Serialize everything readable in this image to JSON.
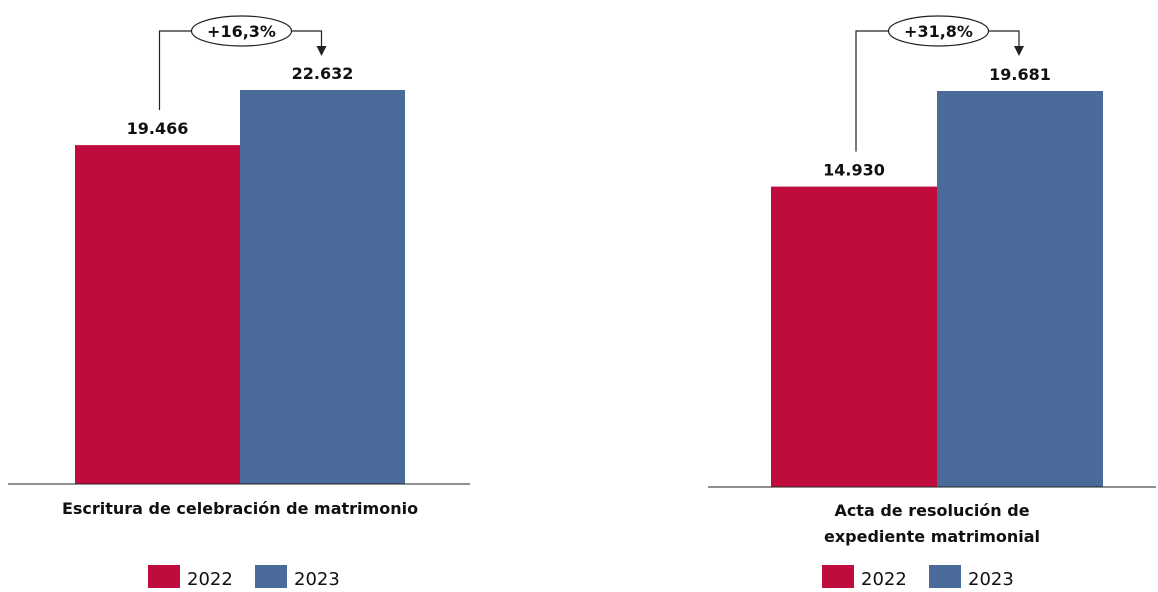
{
  "chart_data": [
    {
      "type": "bar",
      "category": "Escritura de celebración de matrimonio",
      "category_lines": [
        "Escritura de celebración de matrimonio"
      ],
      "series": [
        {
          "name": "2022",
          "value": 19466,
          "label": "19.466"
        },
        {
          "name": "2023",
          "value": 22632,
          "label": "22.632"
        }
      ],
      "change_label": "+16,3%",
      "ylim": [
        0,
        25000
      ]
    },
    {
      "type": "bar",
      "category": "Acta de resolución de expediente matrimonial",
      "category_lines": [
        "Acta de resolución de",
        "expediente matrimonial"
      ],
      "series": [
        {
          "name": "2022",
          "value": 14930,
          "label": "14.930"
        },
        {
          "name": "2023",
          "value": 19681,
          "label": "19.681"
        }
      ],
      "change_label": "+31,8%",
      "ylim": [
        0,
        22000
      ]
    }
  ],
  "legend": [
    {
      "label": "2022",
      "color": "#c00c3c"
    },
    {
      "label": "2023",
      "color": "#4a6a99"
    }
  ],
  "colors": {
    "2022": "#c00c3c",
    "2023": "#4a6a99"
  }
}
